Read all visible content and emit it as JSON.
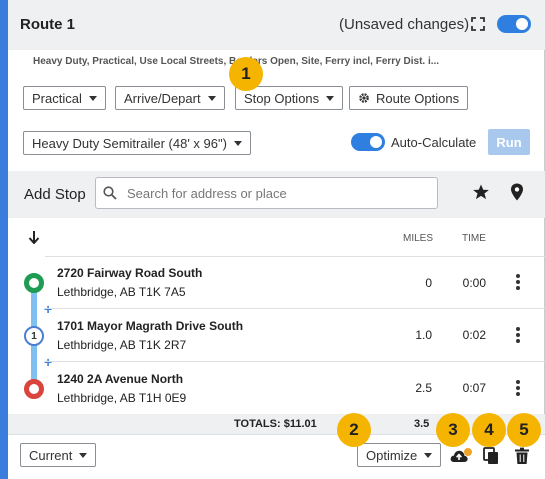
{
  "header": {
    "title": "Route 1",
    "status": "(Unsaved changes)"
  },
  "route_options_summary": "Heavy Duty, Practical, Use Local Streets, Borders Open, Site, Ferry incl, Ferry Dist. i...",
  "toolbar": {
    "routing_type": "Practical",
    "arrive_depart": "Arrive/Depart",
    "stop_options": "Stop Options",
    "route_options": "Route Options"
  },
  "vehicle": {
    "profile": "Heavy Duty Semitrailer (48' x 96\")",
    "auto_calculate_label": "Auto-Calculate",
    "run_label": "Run"
  },
  "add_stop": {
    "label": "Add Stop",
    "search_placeholder": "Search for address or place"
  },
  "columns": {
    "miles": "MILES",
    "time": "TIME"
  },
  "stops": [
    {
      "marker": "",
      "street": "2720 Fairway Road South",
      "city": "Lethbridge, AB T1K 7A5",
      "miles": "0",
      "time": "0:00"
    },
    {
      "marker": "1",
      "street": "1701 Mayor Magrath Drive South",
      "city": "Lethbridge, AB T1K 2R7",
      "miles": "1.0",
      "time": "0:02"
    },
    {
      "marker": "",
      "street": "1240 2A Avenue North",
      "city": "Lethbridge, AB T1H 0E9",
      "miles": "2.5",
      "time": "0:07"
    }
  ],
  "totals": {
    "label": "TOTALS: $11.01",
    "miles": "3.5"
  },
  "footer": {
    "current": "Current",
    "optimize": "Optimize"
  },
  "callouts": [
    "1",
    "2",
    "3",
    "4",
    "5"
  ],
  "colors": {
    "accent": "#3b7ddd",
    "toggle_on": "#2f7fe0",
    "start_marker": "#1e9c54",
    "end_marker": "#d9453c",
    "callout": "#f5b400",
    "run_disabled": "#a8c8ee"
  },
  "icons": {
    "expand": "expand-icon",
    "gear": "gear-icon",
    "search": "search-icon",
    "star": "star-icon",
    "pin": "map-pin-icon",
    "sort": "sort-down-arrow-icon",
    "kebab": "more-vertical-icon",
    "cloud_upload": "cloud-upload-icon",
    "copy": "copy-icon",
    "trash": "trash-icon"
  }
}
